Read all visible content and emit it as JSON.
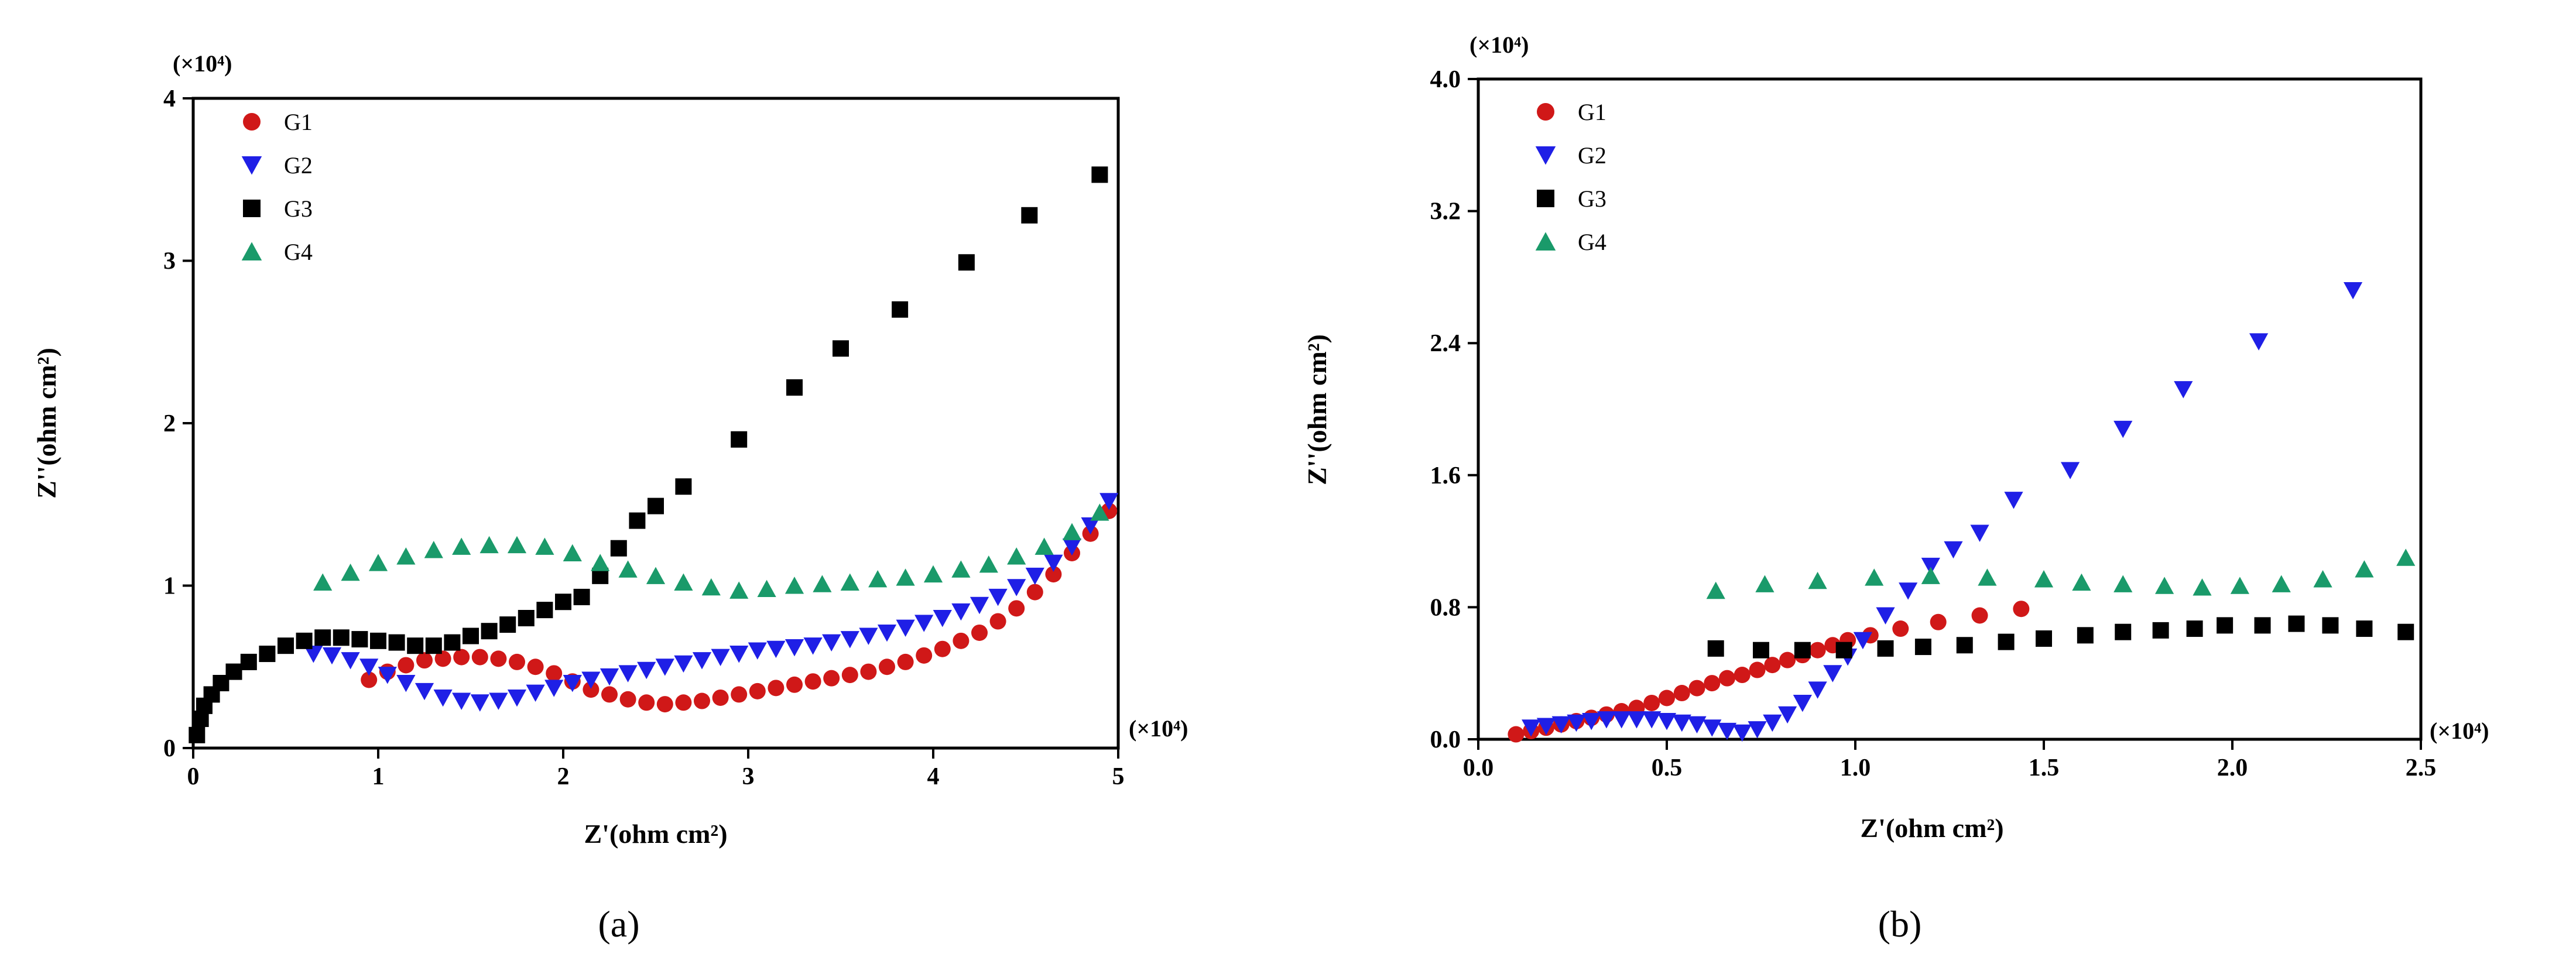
{
  "chart_data": [
    {
      "type": "scatter",
      "panel_label": "(a)",
      "x_multiplier": "(×10⁴)",
      "y_multiplier": "(×10⁴)",
      "xlabel": "Z'(ohm cm²)",
      "ylabel": "Z''(ohm cm²)",
      "xlim": [
        0,
        5
      ],
      "ylim": [
        0,
        4
      ],
      "xticks": [
        "0",
        "1",
        "2",
        "3",
        "4",
        "5"
      ],
      "yticks": [
        "0",
        "1",
        "2",
        "3",
        "4"
      ],
      "legend_position": "top-left",
      "series": [
        {
          "name": "G1",
          "marker": "circle",
          "color": "#d01818",
          "x": [
            0.95,
            1.05,
            1.15,
            1.25,
            1.35,
            1.45,
            1.55,
            1.65,
            1.75,
            1.85,
            1.95,
            2.05,
            2.15,
            2.25,
            2.35,
            2.45,
            2.55,
            2.65,
            2.75,
            2.85,
            2.95,
            3.05,
            3.15,
            3.25,
            3.35,
            3.45,
            3.55,
            3.65,
            3.75,
            3.85,
            3.95,
            4.05,
            4.15,
            4.25,
            4.35,
            4.45,
            4.55,
            4.65,
            4.75,
            4.85,
            4.95
          ],
          "y": [
            0.42,
            0.47,
            0.51,
            0.54,
            0.55,
            0.56,
            0.56,
            0.55,
            0.53,
            0.5,
            0.46,
            0.41,
            0.36,
            0.33,
            0.3,
            0.28,
            0.27,
            0.28,
            0.29,
            0.31,
            0.33,
            0.35,
            0.37,
            0.39,
            0.41,
            0.43,
            0.45,
            0.47,
            0.5,
            0.53,
            0.57,
            0.61,
            0.66,
            0.71,
            0.78,
            0.86,
            0.96,
            1.07,
            1.2,
            1.32,
            1.46
          ]
        },
        {
          "name": "G2",
          "marker": "triangle-down",
          "color": "#1f1fe6",
          "x": [
            0.65,
            0.75,
            0.85,
            0.95,
            1.05,
            1.15,
            1.25,
            1.35,
            1.45,
            1.55,
            1.65,
            1.75,
            1.85,
            1.95,
            2.05,
            2.15,
            2.25,
            2.35,
            2.45,
            2.55,
            2.65,
            2.75,
            2.85,
            2.95,
            3.05,
            3.15,
            3.25,
            3.35,
            3.45,
            3.55,
            3.65,
            3.75,
            3.85,
            3.95,
            4.05,
            4.15,
            4.25,
            4.35,
            4.45,
            4.55,
            4.65,
            4.75,
            4.85,
            4.95
          ],
          "y": [
            0.58,
            0.57,
            0.54,
            0.5,
            0.45,
            0.4,
            0.35,
            0.31,
            0.29,
            0.28,
            0.29,
            0.31,
            0.34,
            0.37,
            0.4,
            0.42,
            0.44,
            0.46,
            0.48,
            0.5,
            0.52,
            0.54,
            0.56,
            0.58,
            0.6,
            0.61,
            0.62,
            0.63,
            0.65,
            0.67,
            0.69,
            0.71,
            0.74,
            0.77,
            0.8,
            0.84,
            0.88,
            0.93,
            0.99,
            1.06,
            1.14,
            1.24,
            1.37,
            1.52
          ]
        },
        {
          "name": "G3",
          "marker": "square",
          "color": "#000000",
          "x": [
            0.02,
            0.04,
            0.06,
            0.1,
            0.15,
            0.22,
            0.3,
            0.4,
            0.5,
            0.6,
            0.7,
            0.8,
            0.9,
            1.0,
            1.1,
            1.2,
            1.3,
            1.4,
            1.5,
            1.6,
            1.7,
            1.8,
            1.9,
            2.0,
            2.1,
            2.2,
            2.3,
            2.4,
            2.5,
            2.65,
            2.95,
            3.25,
            3.5,
            3.82,
            4.18,
            4.52,
            4.9
          ],
          "y": [
            0.08,
            0.18,
            0.26,
            0.33,
            0.4,
            0.47,
            0.53,
            0.58,
            0.63,
            0.66,
            0.68,
            0.68,
            0.67,
            0.66,
            0.65,
            0.63,
            0.63,
            0.65,
            0.69,
            0.72,
            0.76,
            0.8,
            0.85,
            0.9,
            0.93,
            1.06,
            1.23,
            1.4,
            1.49,
            1.61,
            1.9,
            2.22,
            2.46,
            2.7,
            2.99,
            3.28,
            3.53
          ]
        },
        {
          "name": "G4",
          "marker": "triangle-up",
          "color": "#1a9a6a",
          "x": [
            0.7,
            0.85,
            1.0,
            1.15,
            1.3,
            1.45,
            1.6,
            1.75,
            1.9,
            2.05,
            2.2,
            2.35,
            2.5,
            2.65,
            2.8,
            2.95,
            3.1,
            3.25,
            3.4,
            3.55,
            3.7,
            3.85,
            4.0,
            4.15,
            4.3,
            4.45,
            4.6,
            4.75,
            4.9
          ],
          "y": [
            1.02,
            1.08,
            1.14,
            1.18,
            1.22,
            1.24,
            1.25,
            1.25,
            1.24,
            1.2,
            1.14,
            1.1,
            1.06,
            1.02,
            0.99,
            0.97,
            0.98,
            1.0,
            1.01,
            1.02,
            1.04,
            1.05,
            1.07,
            1.1,
            1.13,
            1.18,
            1.24,
            1.33,
            1.45
          ]
        }
      ]
    },
    {
      "type": "scatter",
      "panel_label": "(b)",
      "x_multiplier": "(×10⁴)",
      "y_multiplier": "(×10⁴)",
      "xlabel": "Z'(ohm cm²)",
      "ylabel": "Z''(ohm cm²)",
      "xlim": [
        0,
        2.5
      ],
      "ylim": [
        0,
        4
      ],
      "xticks": [
        "0.0",
        "0.5",
        "1.0",
        "1.5",
        "2.0",
        "2.5"
      ],
      "yticks": [
        "0.0",
        "0.8",
        "1.6",
        "2.4",
        "3.2",
        "4.0"
      ],
      "legend_position": "top-left",
      "series": [
        {
          "name": "G1",
          "marker": "circle",
          "color": "#d01818",
          "x": [
            0.1,
            0.14,
            0.18,
            0.22,
            0.26,
            0.3,
            0.34,
            0.38,
            0.42,
            0.46,
            0.5,
            0.54,
            0.58,
            0.62,
            0.66,
            0.7,
            0.74,
            0.78,
            0.82,
            0.86,
            0.9,
            0.94,
            0.98,
            1.04,
            1.12,
            1.22,
            1.33,
            1.44
          ],
          "y": [
            0.03,
            0.05,
            0.07,
            0.09,
            0.11,
            0.13,
            0.15,
            0.17,
            0.19,
            0.22,
            0.25,
            0.28,
            0.31,
            0.34,
            0.37,
            0.39,
            0.42,
            0.45,
            0.48,
            0.51,
            0.54,
            0.57,
            0.6,
            0.63,
            0.67,
            0.71,
            0.75,
            0.79
          ]
        },
        {
          "name": "G2",
          "marker": "triangle-down",
          "color": "#1f1fe6",
          "x": [
            0.14,
            0.18,
            0.22,
            0.26,
            0.3,
            0.34,
            0.38,
            0.42,
            0.46,
            0.5,
            0.54,
            0.58,
            0.62,
            0.66,
            0.7,
            0.74,
            0.78,
            0.82,
            0.86,
            0.9,
            0.94,
            0.98,
            1.02,
            1.08,
            1.14,
            1.2,
            1.26,
            1.33,
            1.42,
            1.57,
            1.71,
            1.87,
            2.07,
            2.32
          ],
          "y": [
            0.07,
            0.08,
            0.09,
            0.1,
            0.11,
            0.12,
            0.12,
            0.12,
            0.12,
            0.11,
            0.1,
            0.09,
            0.07,
            0.05,
            0.04,
            0.06,
            0.1,
            0.15,
            0.22,
            0.3,
            0.4,
            0.5,
            0.6,
            0.75,
            0.9,
            1.05,
            1.15,
            1.25,
            1.45,
            1.63,
            1.88,
            2.12,
            2.41,
            2.72
          ]
        },
        {
          "name": "G3",
          "marker": "square",
          "color": "#000000",
          "x": [
            0.63,
            0.75,
            0.86,
            0.97,
            1.08,
            1.18,
            1.29,
            1.4,
            1.5,
            1.61,
            1.71,
            1.81,
            1.9,
            1.98,
            2.08,
            2.17,
            2.26,
            2.35,
            2.46
          ],
          "y": [
            0.55,
            0.54,
            0.54,
            0.54,
            0.55,
            0.56,
            0.57,
            0.59,
            0.61,
            0.63,
            0.65,
            0.66,
            0.67,
            0.69,
            0.69,
            0.7,
            0.69,
            0.67,
            0.65
          ]
        },
        {
          "name": "G4",
          "marker": "triangle-up",
          "color": "#1a9a6a",
          "x": [
            0.63,
            0.76,
            0.9,
            1.05,
            1.2,
            1.35,
            1.5,
            1.6,
            1.71,
            1.82,
            1.92,
            2.02,
            2.13,
            2.24,
            2.35,
            2.46
          ],
          "y": [
            0.9,
            0.94,
            0.96,
            0.98,
            0.99,
            0.98,
            0.97,
            0.95,
            0.94,
            0.93,
            0.92,
            0.93,
            0.94,
            0.97,
            1.03,
            1.1
          ]
        }
      ]
    }
  ]
}
